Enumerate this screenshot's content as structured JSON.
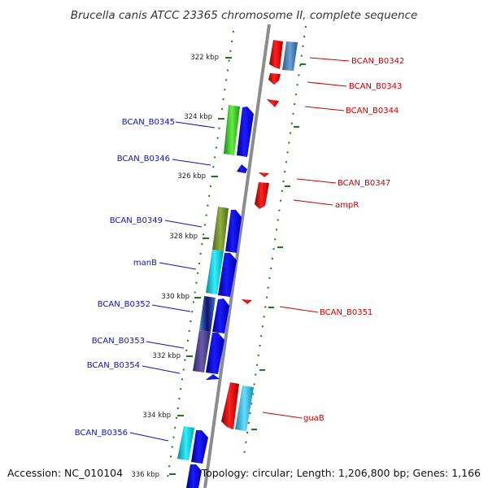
{
  "title": "Brucella canis ATCC 23365 chromosome II, complete sequence",
  "footer": {
    "accession": "Accession: NC_010104",
    "topology": "Topology: circular; Length: 1,206,800 bp; Genes: 1,166"
  },
  "colors": {
    "backbone": "#8c8c8c",
    "tick": "#1a7a1a",
    "forward_label": "#1010c0",
    "reverse_label": "#cc0000",
    "reverse_gene": "#ee0000",
    "forward_gene": "#0000ee"
  },
  "kbp_labels": [
    "322 kbp",
    "324 kbp",
    "326 kbp",
    "328 kbp",
    "330 kbp",
    "332 kbp",
    "334 kbp",
    "336 kbp"
  ],
  "left_labels": [
    {
      "text": "BCAN_B0345"
    },
    {
      "text": "BCAN_B0346"
    },
    {
      "text": "BCAN_B0349"
    },
    {
      "text": "manB"
    },
    {
      "text": "BCAN_B0352"
    },
    {
      "text": "BCAN_B0353"
    },
    {
      "text": "BCAN_B0354"
    },
    {
      "text": "BCAN_B0356"
    }
  ],
  "right_labels": [
    {
      "text": "BCAN_B0342"
    },
    {
      "text": "BCAN_B0343"
    },
    {
      "text": "BCAN_B0344"
    },
    {
      "text": "BCAN_B0347"
    },
    {
      "text": "ampR"
    },
    {
      "text": "BCAN_B0351"
    },
    {
      "text": "guaB"
    }
  ]
}
